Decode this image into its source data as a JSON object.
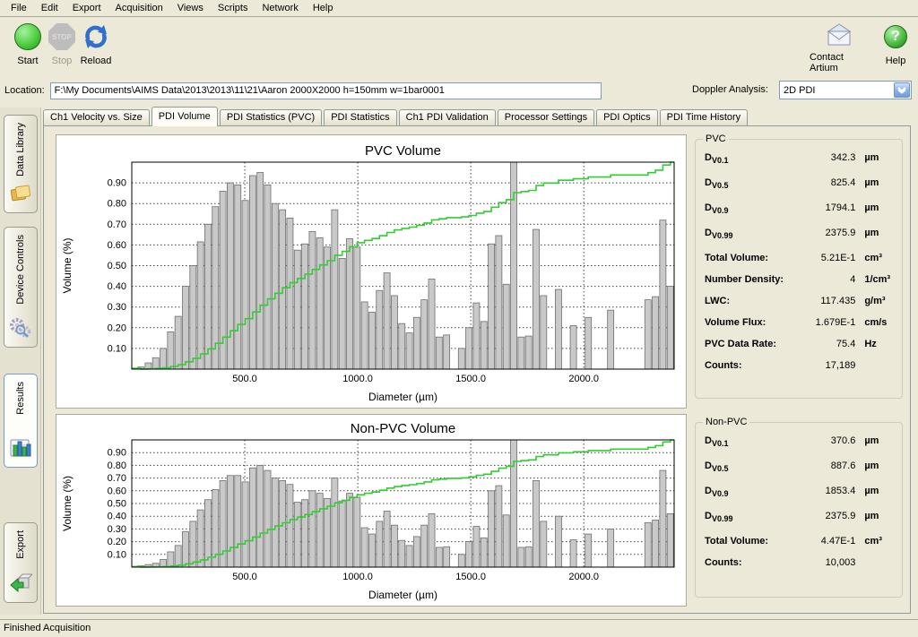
{
  "menu": {
    "items": [
      "File",
      "Edit",
      "Export",
      "Acquisition",
      "Views",
      "Scripts",
      "Network",
      "Help"
    ]
  },
  "toolbar": {
    "start_label": "Start",
    "stop_label": "Stop",
    "stop_icon_text": "STOP",
    "reload_label": "Reload",
    "contact_label": "Contact Artium",
    "help_label": "Help",
    "help_glyph": "?"
  },
  "location": {
    "label": "Location:",
    "value": "F:\\My Documents\\AIMS Data\\2013\\2013\\11\\21\\Aaron 2000X2000  h=150mm w=1bar0001"
  },
  "doppler": {
    "label": "Doppler Analysis:",
    "value": "2D PDI"
  },
  "sidebar": {
    "items": [
      {
        "label": "Data Library",
        "icon": "folders-icon",
        "active": false
      },
      {
        "label": "Device Controls",
        "icon": "gears-icon",
        "active": false
      },
      {
        "label": "Results",
        "icon": "barchart-icon",
        "active": true
      },
      {
        "label": "Export",
        "icon": "export-icon",
        "active": false
      }
    ]
  },
  "tabs": {
    "labels": [
      "Ch1 Velocity vs. Size",
      "PDI Volume",
      "PDI Statistics (PVC)",
      "PDI Statistics",
      "Ch1 PDI Validation",
      "Processor Settings",
      "PDI Optics",
      "PDI Time History"
    ],
    "active": "PDI Volume"
  },
  "chart_data": [
    {
      "type": "bar",
      "title": "PVC Volume",
      "xlabel": "Diameter (µm)",
      "ylabel": "Volume (%)",
      "xlim": [
        0,
        2400
      ],
      "ylim": [
        0,
        1.0
      ],
      "xticks": [
        500,
        1000,
        1500,
        2000
      ],
      "yticks": [
        0.1,
        0.2,
        0.3,
        0.4,
        0.5,
        0.6,
        0.7,
        0.8,
        0.9
      ],
      "grid": true,
      "bar_color": "#c9c9c9",
      "bar_edge_color": "#6e6e6e",
      "line_color": "#33cc33",
      "cumulative_line": "normalized cumulative volume",
      "bars": [
        [
          40,
          0.01
        ],
        [
          73,
          0.03
        ],
        [
          106,
          0.055
        ],
        [
          139,
          0.1
        ],
        [
          172,
          0.18
        ],
        [
          205,
          0.255
        ],
        [
          238,
          0.4
        ],
        [
          271,
          0.5
        ],
        [
          304,
          0.615
        ],
        [
          337,
          0.7
        ],
        [
          370,
          0.785
        ],
        [
          403,
          0.86
        ],
        [
          436,
          0.9
        ],
        [
          469,
          0.89
        ],
        [
          502,
          0.815
        ],
        [
          535,
          0.935
        ],
        [
          568,
          0.95
        ],
        [
          601,
          0.89
        ],
        [
          634,
          0.8
        ],
        [
          667,
          0.77
        ],
        [
          700,
          0.73
        ],
        [
          733,
          0.575
        ],
        [
          766,
          0.605
        ],
        [
          799,
          0.665
        ],
        [
          832,
          0.635
        ],
        [
          865,
          0.59
        ],
        [
          898,
          0.77
        ],
        [
          931,
          0.535
        ],
        [
          964,
          0.63
        ],
        [
          997,
          0.59
        ],
        [
          1030,
          0.325
        ],
        [
          1063,
          0.275
        ],
        [
          1096,
          0.38
        ],
        [
          1129,
          0.465
        ],
        [
          1162,
          0.355
        ],
        [
          1195,
          0.22
        ],
        [
          1228,
          0.175
        ],
        [
          1261,
          0.25
        ],
        [
          1294,
          0.335
        ],
        [
          1327,
          0.435
        ],
        [
          1360,
          0.155
        ],
        [
          1393,
          0.165
        ],
        [
          1459,
          0.1
        ],
        [
          1492,
          0.2
        ],
        [
          1525,
          0.32
        ],
        [
          1558,
          0.23
        ],
        [
          1591,
          0.605
        ],
        [
          1624,
          0.645
        ],
        [
          1657,
          0.41
        ],
        [
          1690,
          1.0
        ],
        [
          1723,
          0.155
        ],
        [
          1756,
          0.16
        ],
        [
          1789,
          0.675
        ],
        [
          1822,
          0.355
        ],
        [
          1888,
          0.385
        ],
        [
          1954,
          0.21
        ],
        [
          2020,
          0.25
        ],
        [
          2119,
          0.285
        ],
        [
          2284,
          0.335
        ],
        [
          2317,
          0.35
        ],
        [
          2350,
          0.72
        ],
        [
          2383,
          0.4
        ]
      ]
    },
    {
      "type": "bar",
      "title": "Non-PVC Volume",
      "xlabel": "Diameter (µm)",
      "ylabel": "Volume (%)",
      "xlim": [
        0,
        2400
      ],
      "ylim": [
        0,
        1.0
      ],
      "xticks": [
        500,
        1000,
        1500,
        2000
      ],
      "yticks": [
        0.1,
        0.2,
        0.3,
        0.4,
        0.5,
        0.6,
        0.7,
        0.8,
        0.9
      ],
      "grid": true,
      "bar_color": "#c9c9c9",
      "bar_edge_color": "#6e6e6e",
      "line_color": "#33cc33",
      "cumulative_line": "normalized cumulative volume",
      "bars": [
        [
          40,
          0.01
        ],
        [
          73,
          0.02
        ],
        [
          106,
          0.03
        ],
        [
          139,
          0.06
        ],
        [
          172,
          0.12
        ],
        [
          205,
          0.17
        ],
        [
          238,
          0.28
        ],
        [
          271,
          0.36
        ],
        [
          304,
          0.45
        ],
        [
          337,
          0.53
        ],
        [
          370,
          0.61
        ],
        [
          403,
          0.68
        ],
        [
          436,
          0.72
        ],
        [
          469,
          0.72
        ],
        [
          502,
          0.67
        ],
        [
          535,
          0.78
        ],
        [
          568,
          0.8
        ],
        [
          601,
          0.76
        ],
        [
          634,
          0.7
        ],
        [
          667,
          0.68
        ],
        [
          700,
          0.65
        ],
        [
          733,
          0.51
        ],
        [
          766,
          0.53
        ],
        [
          799,
          0.6
        ],
        [
          832,
          0.58
        ],
        [
          865,
          0.54
        ],
        [
          898,
          0.7
        ],
        [
          931,
          0.52
        ],
        [
          964,
          0.58
        ],
        [
          997,
          0.55
        ],
        [
          1030,
          0.31
        ],
        [
          1063,
          0.26
        ],
        [
          1096,
          0.36
        ],
        [
          1129,
          0.44
        ],
        [
          1162,
          0.33
        ],
        [
          1195,
          0.21
        ],
        [
          1228,
          0.17
        ],
        [
          1261,
          0.24
        ],
        [
          1294,
          0.33
        ],
        [
          1327,
          0.42
        ],
        [
          1360,
          0.155
        ],
        [
          1393,
          0.16
        ],
        [
          1459,
          0.1
        ],
        [
          1492,
          0.2
        ],
        [
          1525,
          0.32
        ],
        [
          1558,
          0.23
        ],
        [
          1591,
          0.6
        ],
        [
          1624,
          0.64
        ],
        [
          1657,
          0.41
        ],
        [
          1690,
          1.0
        ],
        [
          1723,
          0.155
        ],
        [
          1756,
          0.16
        ],
        [
          1789,
          0.68
        ],
        [
          1822,
          0.36
        ],
        [
          1888,
          0.4
        ],
        [
          1954,
          0.215
        ],
        [
          2020,
          0.26
        ],
        [
          2119,
          0.3
        ],
        [
          2284,
          0.35
        ],
        [
          2317,
          0.37
        ],
        [
          2350,
          0.76
        ],
        [
          2383,
          0.42
        ]
      ]
    }
  ],
  "pvc_panel": {
    "title": "PVC",
    "rows": [
      {
        "label": "D",
        "sub": "V0.1",
        "value": "342.3",
        "unit": "µm",
        "size": "tall"
      },
      {
        "label": "D",
        "sub": "V0.5",
        "value": "825.4",
        "unit": "µm",
        "size": "tall"
      },
      {
        "label": "D",
        "sub": "V0.9",
        "value": "1794.1",
        "unit": "µm",
        "size": "tall"
      },
      {
        "label": "D",
        "sub": "V0.99",
        "value": "2375.9",
        "unit": "µm",
        "size": "tall"
      },
      {
        "label": "Total Volume:",
        "sub": "",
        "value": "5.21E-1",
        "unit": "cm³",
        "size": "short"
      },
      {
        "label": "Number Density:",
        "sub": "",
        "value": "4",
        "unit": "1/cm³",
        "size": "short"
      },
      {
        "label": "LWC:",
        "sub": "",
        "value": "117.435",
        "unit": "g/m³",
        "size": "short"
      },
      {
        "label": "Volume Flux:",
        "sub": "",
        "value": "1.679E-1",
        "unit": "cm/s",
        "size": "short"
      },
      {
        "label": "PVC Data Rate:",
        "sub": "",
        "value": "75.4",
        "unit": "Hz",
        "size": "short"
      },
      {
        "label": "Counts:",
        "sub": "",
        "value": "17,189",
        "unit": "",
        "size": "short"
      }
    ]
  },
  "nonpvc_panel": {
    "title": "Non-PVC",
    "rows": [
      {
        "label": "D",
        "sub": "V0.1",
        "value": "370.6",
        "unit": "µm",
        "size": "tall"
      },
      {
        "label": "D",
        "sub": "V0.5",
        "value": "887.6",
        "unit": "µm",
        "size": "tall"
      },
      {
        "label": "D",
        "sub": "V0.9",
        "value": "1853.4",
        "unit": "µm",
        "size": "tall"
      },
      {
        "label": "D",
        "sub": "V0.99",
        "value": "2375.9",
        "unit": "µm",
        "size": "tall"
      },
      {
        "label": "Total Volume:",
        "sub": "",
        "value": "4.47E-1",
        "unit": "cm³",
        "size": "short"
      },
      {
        "label": "Counts:",
        "sub": "",
        "value": "10,003",
        "unit": "",
        "size": "short"
      }
    ]
  },
  "status": "Finished Acquisition"
}
